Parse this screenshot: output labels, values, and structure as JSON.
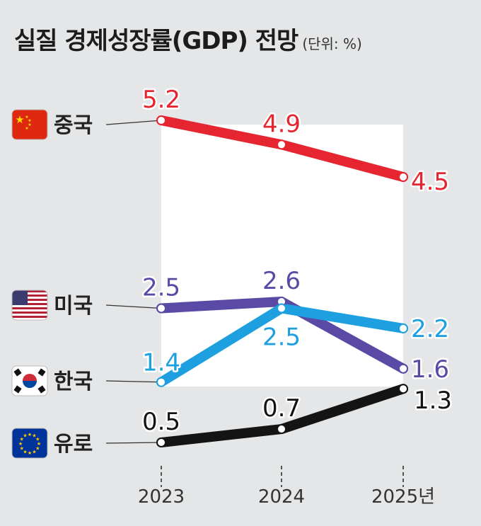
{
  "title": "실질 경제성장률(GDP) 전망",
  "unit_note": "(단위: %)",
  "chart_data": {
    "type": "line",
    "title": "실질 경제성장률(GDP) 전망",
    "unit": "%",
    "categories": [
      "2023",
      "2024",
      "2025년"
    ],
    "series": [
      {
        "name": "중국",
        "values": [
          5.2,
          4.9,
          4.5
        ],
        "color": "#e52630",
        "flag": "china-flag-icon"
      },
      {
        "name": "미국",
        "values": [
          2.5,
          2.6,
          1.6
        ],
        "color": "#5a4aa6",
        "flag": "usa-flag-icon"
      },
      {
        "name": "한국",
        "values": [
          1.4,
          2.5,
          2.2
        ],
        "color": "#1ea0e0",
        "flag": "korea-flag-icon"
      },
      {
        "name": "유로",
        "values": [
          0.5,
          0.7,
          1.3
        ],
        "color": "#141414",
        "flag": "eu-flag-icon"
      }
    ]
  }
}
